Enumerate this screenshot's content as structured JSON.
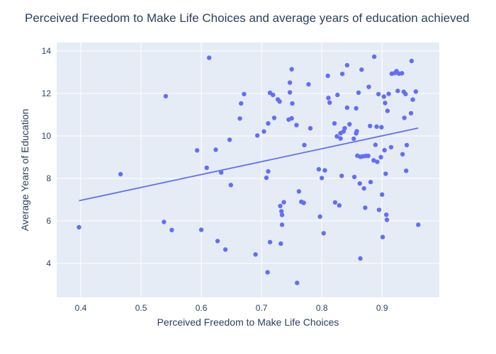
{
  "chart_data": {
    "type": "scatter",
    "title": "Perceived Freedom to Make Life Choices and average years of education achieved",
    "xlabel": "Perceived Freedom to Make Life Choices",
    "ylabel": "Average Years of Education",
    "xlim": [
      0.36,
      0.995
    ],
    "ylim": [
      2.4,
      14.4
    ],
    "xticks": [
      0.4,
      0.5,
      0.6,
      0.7,
      0.8,
      0.9
    ],
    "xtick_labels": [
      "0.4",
      "0.5",
      "0.6",
      "0.7",
      "0.8",
      "0.9"
    ],
    "yticks": [
      4,
      6,
      8,
      10,
      12,
      14
    ],
    "ytick_labels": [
      "4",
      "6",
      "8",
      "10",
      "12",
      "14"
    ],
    "grid": true,
    "legend": false,
    "marker_color": "#636efa",
    "plot_bg": "#e5ecf6",
    "trendline": {
      "x": [
        0.397,
        0.96
      ],
      "y": [
        6.95,
        10.37
      ]
    },
    "points": [
      {
        "x": 0.397,
        "y": 5.7
      },
      {
        "x": 0.466,
        "y": 8.2
      },
      {
        "x": 0.538,
        "y": 5.95
      },
      {
        "x": 0.541,
        "y": 11.87
      },
      {
        "x": 0.551,
        "y": 5.57
      },
      {
        "x": 0.593,
        "y": 9.32
      },
      {
        "x": 0.6,
        "y": 5.58
      },
      {
        "x": 0.609,
        "y": 8.5
      },
      {
        "x": 0.613,
        "y": 13.68
      },
      {
        "x": 0.624,
        "y": 9.35
      },
      {
        "x": 0.627,
        "y": 5.05
      },
      {
        "x": 0.633,
        "y": 8.28
      },
      {
        "x": 0.64,
        "y": 4.65
      },
      {
        "x": 0.647,
        "y": 9.82
      },
      {
        "x": 0.649,
        "y": 7.69
      },
      {
        "x": 0.664,
        "y": 10.82
      },
      {
        "x": 0.666,
        "y": 11.53
      },
      {
        "x": 0.671,
        "y": 11.97
      },
      {
        "x": 0.69,
        "y": 4.42
      },
      {
        "x": 0.693,
        "y": 10.02
      },
      {
        "x": 0.704,
        "y": 10.21
      },
      {
        "x": 0.708,
        "y": 8.03
      },
      {
        "x": 0.71,
        "y": 3.58
      },
      {
        "x": 0.711,
        "y": 8.33
      },
      {
        "x": 0.711,
        "y": 10.59
      },
      {
        "x": 0.714,
        "y": 12.03
      },
      {
        "x": 0.714,
        "y": 5.0
      },
      {
        "x": 0.719,
        "y": 11.93
      },
      {
        "x": 0.721,
        "y": 10.85
      },
      {
        "x": 0.727,
        "y": 11.72
      },
      {
        "x": 0.73,
        "y": 11.62
      },
      {
        "x": 0.731,
        "y": 6.7
      },
      {
        "x": 0.732,
        "y": 4.93
      },
      {
        "x": 0.733,
        "y": 6.45
      },
      {
        "x": 0.734,
        "y": 6.28
      },
      {
        "x": 0.734,
        "y": 5.82
      },
      {
        "x": 0.737,
        "y": 6.88
      },
      {
        "x": 0.745,
        "y": 10.77
      },
      {
        "x": 0.747,
        "y": 12.05
      },
      {
        "x": 0.747,
        "y": 12.51
      },
      {
        "x": 0.75,
        "y": 13.14
      },
      {
        "x": 0.75,
        "y": 10.83
      },
      {
        "x": 0.751,
        "y": 11.53
      },
      {
        "x": 0.758,
        "y": 10.51
      },
      {
        "x": 0.759,
        "y": 3.08
      },
      {
        "x": 0.762,
        "y": 7.39
      },
      {
        "x": 0.766,
        "y": 6.9
      },
      {
        "x": 0.77,
        "y": 6.85
      },
      {
        "x": 0.771,
        "y": 9.57
      },
      {
        "x": 0.778,
        "y": 12.43
      },
      {
        "x": 0.781,
        "y": 10.36
      },
      {
        "x": 0.795,
        "y": 8.43
      },
      {
        "x": 0.797,
        "y": 6.2
      },
      {
        "x": 0.8,
        "y": 8.02
      },
      {
        "x": 0.803,
        "y": 5.42
      },
      {
        "x": 0.805,
        "y": 8.38
      },
      {
        "x": 0.81,
        "y": 12.83
      },
      {
        "x": 0.811,
        "y": 11.79
      },
      {
        "x": 0.813,
        "y": 11.57
      },
      {
        "x": 0.821,
        "y": 10.59
      },
      {
        "x": 0.822,
        "y": 6.87
      },
      {
        "x": 0.825,
        "y": 9.98
      },
      {
        "x": 0.826,
        "y": 11.93
      },
      {
        "x": 0.829,
        "y": 6.73
      },
      {
        "x": 0.831,
        "y": 10.13
      },
      {
        "x": 0.831,
        "y": 9.88
      },
      {
        "x": 0.833,
        "y": 8.12
      },
      {
        "x": 0.834,
        "y": 12.92
      },
      {
        "x": 0.836,
        "y": 10.21
      },
      {
        "x": 0.838,
        "y": 10.36
      },
      {
        "x": 0.842,
        "y": 13.33
      },
      {
        "x": 0.842,
        "y": 11.33
      },
      {
        "x": 0.846,
        "y": 10.55
      },
      {
        "x": 0.853,
        "y": 9.87
      },
      {
        "x": 0.854,
        "y": 8.07
      },
      {
        "x": 0.857,
        "y": 11.3
      },
      {
        "x": 0.857,
        "y": 10.12
      },
      {
        "x": 0.858,
        "y": 10.22
      },
      {
        "x": 0.859,
        "y": 9.07
      },
      {
        "x": 0.861,
        "y": 12.04
      },
      {
        "x": 0.863,
        "y": 7.76
      },
      {
        "x": 0.864,
        "y": 4.23
      },
      {
        "x": 0.864,
        "y": 9.02
      },
      {
        "x": 0.866,
        "y": 13.12
      },
      {
        "x": 0.868,
        "y": 9.04
      },
      {
        "x": 0.87,
        "y": 7.53
      },
      {
        "x": 0.872,
        "y": 6.62
      },
      {
        "x": 0.873,
        "y": 9.06
      },
      {
        "x": 0.877,
        "y": 9.06
      },
      {
        "x": 0.878,
        "y": 12.31
      },
      {
        "x": 0.88,
        "y": 10.47
      },
      {
        "x": 0.881,
        "y": 7.83
      },
      {
        "x": 0.886,
        "y": 8.85
      },
      {
        "x": 0.887,
        "y": 13.73
      },
      {
        "x": 0.889,
        "y": 9.58
      },
      {
        "x": 0.891,
        "y": 10.44
      },
      {
        "x": 0.892,
        "y": 8.78
      },
      {
        "x": 0.894,
        "y": 11.97
      },
      {
        "x": 0.895,
        "y": 6.52
      },
      {
        "x": 0.898,
        "y": 9.0
      },
      {
        "x": 0.899,
        "y": 10.41
      },
      {
        "x": 0.9,
        "y": 7.24
      },
      {
        "x": 0.901,
        "y": 5.24
      },
      {
        "x": 0.903,
        "y": 11.85
      },
      {
        "x": 0.904,
        "y": 9.33
      },
      {
        "x": 0.905,
        "y": 11.55
      },
      {
        "x": 0.906,
        "y": 8.22
      },
      {
        "x": 0.907,
        "y": 6.29
      },
      {
        "x": 0.908,
        "y": 6.05
      },
      {
        "x": 0.909,
        "y": 11.18
      },
      {
        "x": 0.911,
        "y": 11.98
      },
      {
        "x": 0.915,
        "y": 9.47
      },
      {
        "x": 0.916,
        "y": 12.93
      },
      {
        "x": 0.921,
        "y": 12.96
      },
      {
        "x": 0.924,
        "y": 13.05
      },
      {
        "x": 0.926,
        "y": 12.12
      },
      {
        "x": 0.928,
        "y": 12.93
      },
      {
        "x": 0.933,
        "y": 12.95
      },
      {
        "x": 0.934,
        "y": 9.14
      },
      {
        "x": 0.936,
        "y": 12.08
      },
      {
        "x": 0.937,
        "y": 10.85
      },
      {
        "x": 0.939,
        "y": 11.97
      },
      {
        "x": 0.94,
        "y": 8.36
      },
      {
        "x": 0.941,
        "y": 9.57
      },
      {
        "x": 0.948,
        "y": 11.07
      },
      {
        "x": 0.949,
        "y": 13.53
      },
      {
        "x": 0.951,
        "y": 11.71
      },
      {
        "x": 0.956,
        "y": 12.09
      },
      {
        "x": 0.96,
        "y": 5.82
      }
    ]
  }
}
